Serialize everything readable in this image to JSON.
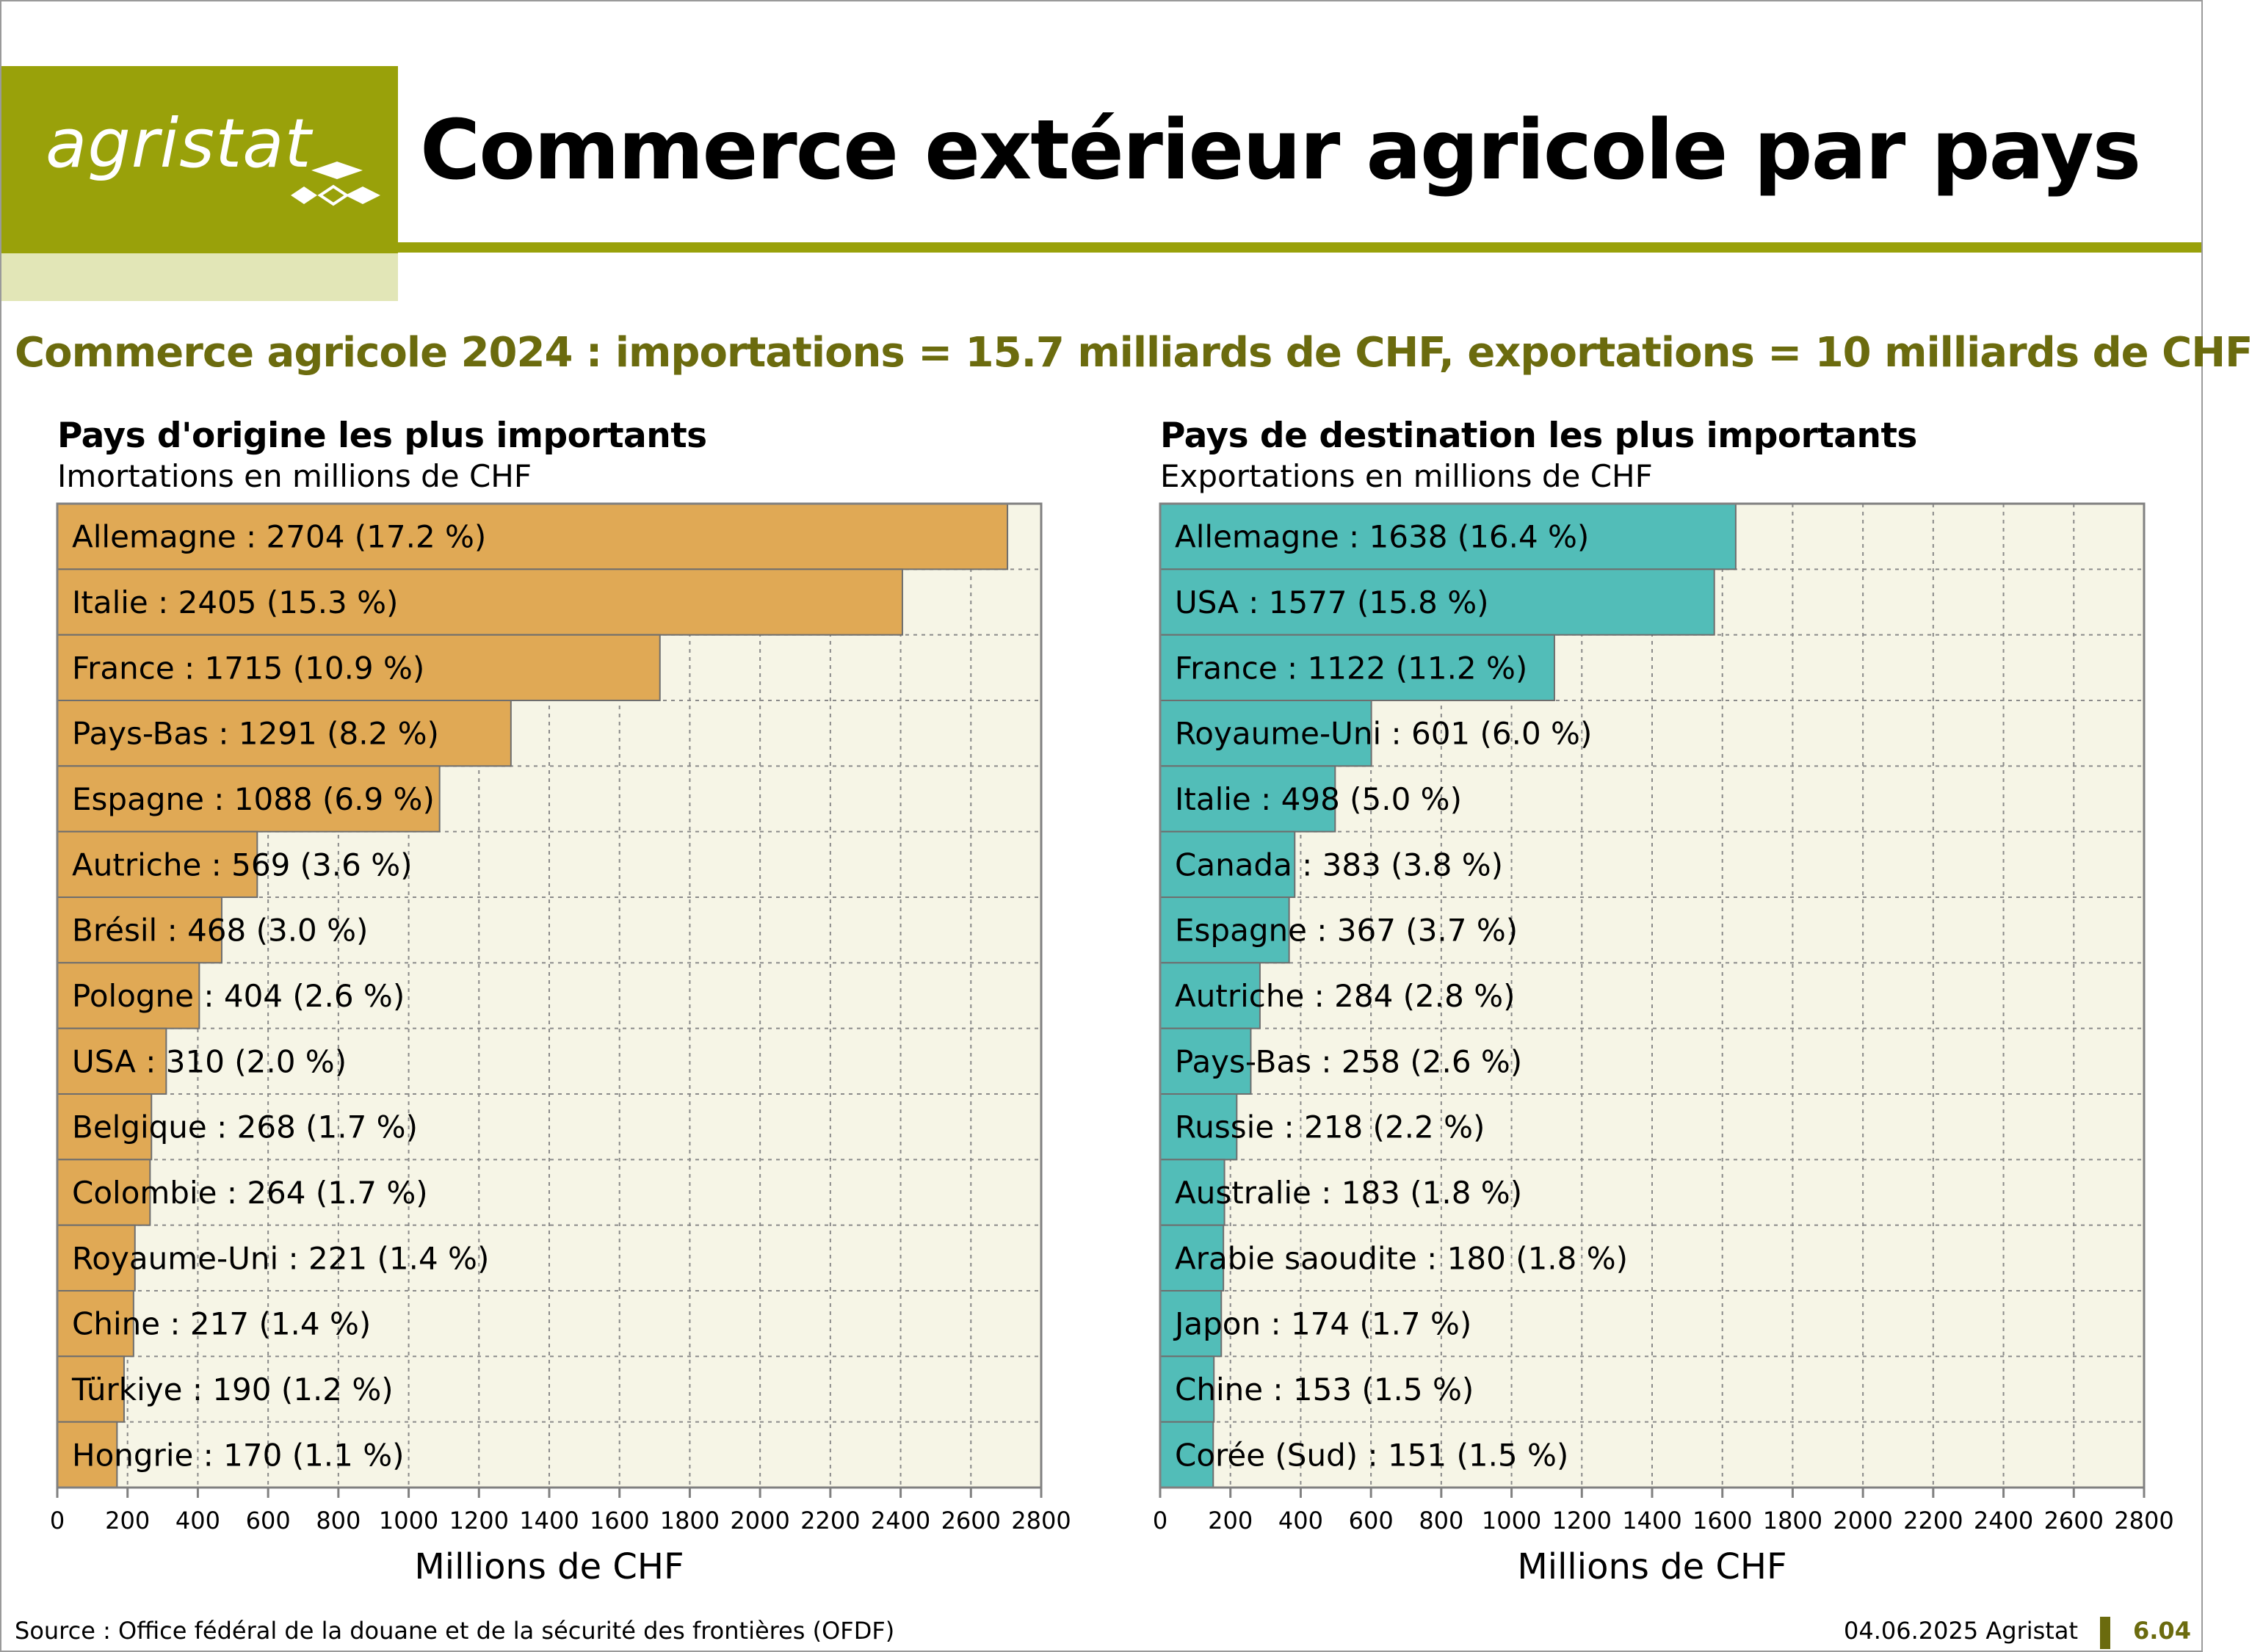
{
  "header": {
    "logo_text": "agristat",
    "title": "Commerce extérieur agricole par pays",
    "subtitle": "Commerce agricole 2024 : importations = 15.7 milliards de CHF, exportations = 10 milliards de CHF"
  },
  "colors": {
    "brand": "#99a10a",
    "brand_light": "#e2e6b7",
    "subtitle": "#6b6b0e",
    "import_bar": "#e0a955",
    "export_bar": "#52bdb8",
    "plot_bg": "#f6f5e6"
  },
  "panels": {
    "imports": {
      "title": "Pays d'origine les plus importants",
      "subtitle": "Imortations en millions de CHF"
    },
    "exports": {
      "title": "Pays de destination les plus importants",
      "subtitle": "Exportations en millions de CHF"
    }
  },
  "chart_data": [
    {
      "type": "bar",
      "orientation": "horizontal",
      "categories": [
        "Allemagne : 2704 (17.2 %)",
        "Italie : 2405 (15.3 %)",
        "France : 1715 (10.9 %)",
        "Pays-Bas : 1291 (8.2 %)",
        "Espagne : 1088 (6.9 %)",
        "Autriche : 569 (3.6 %)",
        "Brésil : 468 (3.0 %)",
        "Pologne : 404 (2.6 %)",
        "USA : 310 (2.0 %)",
        "Belgique : 268 (1.7 %)",
        "Colombie : 264 (1.7 %)",
        "Royaume-Uni : 221 (1.4 %)",
        "Chine : 217 (1.4 %)",
        "Türkiye : 190 (1.2 %)",
        "Hongrie : 170 (1.1 %)"
      ],
      "values": [
        2704,
        2405,
        1715,
        1291,
        1088,
        569,
        468,
        404,
        310,
        268,
        264,
        221,
        217,
        190,
        170
      ],
      "xlabel": "Millions de CHF",
      "xlim": [
        0,
        2800
      ],
      "xticks": [
        0,
        200,
        400,
        600,
        800,
        1000,
        1200,
        1400,
        1600,
        1800,
        2000,
        2200,
        2400,
        2600,
        2800
      ],
      "grid": true
    },
    {
      "type": "bar",
      "orientation": "horizontal",
      "categories": [
        "Allemagne : 1638 (16.4 %)",
        "USA : 1577 (15.8 %)",
        "France : 1122 (11.2 %)",
        "Royaume-Uni : 601 (6.0 %)",
        "Italie : 498 (5.0 %)",
        "Canada : 383 (3.8 %)",
        "Espagne : 367 (3.7 %)",
        "Autriche : 284 (2.8 %)",
        "Pays-Bas : 258 (2.6 %)",
        "Russie : 218 (2.2 %)",
        "Australie : 183 (1.8 %)",
        "Arabie saoudite : 180 (1.8 %)",
        "Japon : 174 (1.7 %)",
        "Chine : 153 (1.5 %)",
        "Corée (Sud) : 151 (1.5 %)"
      ],
      "values": [
        1638,
        1577,
        1122,
        601,
        498,
        383,
        367,
        284,
        258,
        218,
        183,
        180,
        174,
        153,
        151
      ],
      "xlabel": "Millions de CHF",
      "xlim": [
        0,
        2800
      ],
      "xticks": [
        0,
        200,
        400,
        600,
        800,
        1000,
        1200,
        1400,
        1600,
        1800,
        2000,
        2200,
        2400,
        2600,
        2800
      ],
      "grid": true
    }
  ],
  "footer": {
    "source": "Source : Office fédéral de la douane et de la sécurité des frontières (OFDF)",
    "date": "04.06.2025 Agristat",
    "page": "6.04"
  }
}
